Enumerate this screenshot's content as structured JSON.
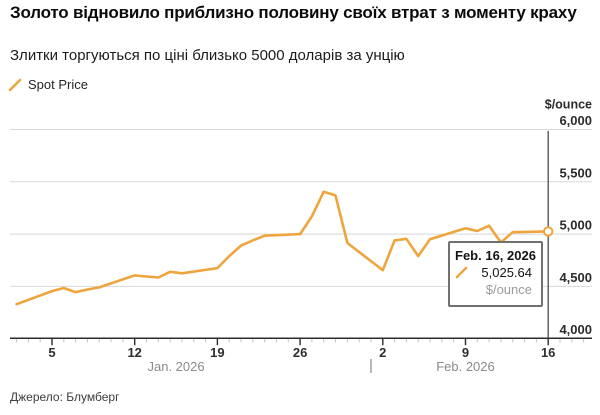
{
  "header": {
    "title": "Золото відновило приблизно половину своїх втрат з моменту краху",
    "subtitle": "Злитки торгуються по ціні близько 5000 доларів за унцію"
  },
  "legend": {
    "label": "Spot Price"
  },
  "tooltip": {
    "date": "Feb. 16, 2026",
    "value": "5,025.64",
    "unit": "$/ounce"
  },
  "footer": {
    "source": "Джерело: Блумберг"
  },
  "colors": {
    "line": "#efa53d",
    "grid": "#d8d8d8",
    "axis": "#2b2b2b",
    "crosshair": "#4d4d4d",
    "tick_minor": "#c4c4c4",
    "text_dark": "#2b2b2b",
    "text_muted": "#8a8a8a",
    "tooltip_border": "#70706e"
  },
  "chart_data": {
    "type": "line",
    "title": "Gold spot price",
    "legend_position": "top-left",
    "grid": "horizontal",
    "y_axis": {
      "unit": "$/ounce",
      "range": [
        4000,
        6000
      ],
      "ticks": [
        {
          "label": "6,000",
          "value": 6000
        },
        {
          "label": "5,500",
          "value": 5500
        },
        {
          "label": "5,000",
          "value": 5000
        },
        {
          "label": "4,500",
          "value": 4500
        },
        {
          "label": "4,000",
          "value": 4000
        }
      ]
    },
    "x_axis": {
      "start_date": "Jan 2, 2026",
      "end_date": "Feb 16, 2026",
      "ticks": [
        {
          "label": "5",
          "day": 3
        },
        {
          "label": "12",
          "day": 10
        },
        {
          "label": "19",
          "day": 17
        },
        {
          "label": "26",
          "day": 24
        },
        {
          "label": "2",
          "day": 31
        },
        {
          "label": "9",
          "day": 38
        },
        {
          "label": "16",
          "day": 45
        }
      ],
      "month_labels": [
        {
          "label": "Jan. 2026",
          "center_day": 13.5
        },
        {
          "label": "Feb. 2026",
          "center_day": 38
        }
      ],
      "month_separator_day": 30
    },
    "highlight": {
      "day": 45,
      "value": 5025.64,
      "date": "Feb. 16, 2026"
    },
    "series": [
      {
        "name": "Spot Price",
        "points": [
          {
            "date": "Jan 2",
            "day": 0,
            "value": 4330
          },
          {
            "date": "Jan 5",
            "day": 3,
            "value": 4455
          },
          {
            "date": "Jan 6",
            "day": 4,
            "value": 4485
          },
          {
            "date": "Jan 7",
            "day": 5,
            "value": 4445
          },
          {
            "date": "Jan 8",
            "day": 6,
            "value": 4470
          },
          {
            "date": "Jan 9",
            "day": 7,
            "value": 4490
          },
          {
            "date": "Jan 12",
            "day": 10,
            "value": 4605
          },
          {
            "date": "Jan 13",
            "day": 11,
            "value": 4595
          },
          {
            "date": "Jan 14",
            "day": 12,
            "value": 4585
          },
          {
            "date": "Jan 15",
            "day": 13,
            "value": 4640
          },
          {
            "date": "Jan 16",
            "day": 14,
            "value": 4625
          },
          {
            "date": "Jan 19",
            "day": 17,
            "value": 4675
          },
          {
            "date": "Jan 20",
            "day": 18,
            "value": 4790
          },
          {
            "date": "Jan 21",
            "day": 19,
            "value": 4890
          },
          {
            "date": "Jan 22",
            "day": 20,
            "value": 4940
          },
          {
            "date": "Jan 23",
            "day": 21,
            "value": 4985
          },
          {
            "date": "Jan 26",
            "day": 24,
            "value": 5000
          },
          {
            "date": "Jan 27",
            "day": 25,
            "value": 5170
          },
          {
            "date": "Jan 28",
            "day": 26,
            "value": 5405
          },
          {
            "date": "Jan 29",
            "day": 27,
            "value": 5370
          },
          {
            "date": "Jan 30",
            "day": 28,
            "value": 4915
          },
          {
            "date": "Feb 2",
            "day": 31,
            "value": 4655
          },
          {
            "date": "Feb 3",
            "day": 32,
            "value": 4940
          },
          {
            "date": "Feb 4",
            "day": 33,
            "value": 4955
          },
          {
            "date": "Feb 5",
            "day": 34,
            "value": 4790
          },
          {
            "date": "Feb 6",
            "day": 35,
            "value": 4950
          },
          {
            "date": "Feb 9",
            "day": 38,
            "value": 5055
          },
          {
            "date": "Feb 10",
            "day": 39,
            "value": 5030
          },
          {
            "date": "Feb 11",
            "day": 40,
            "value": 5080
          },
          {
            "date": "Feb 12",
            "day": 41,
            "value": 4920
          },
          {
            "date": "Feb 13",
            "day": 42,
            "value": 5018
          },
          {
            "date": "Feb 16",
            "day": 45,
            "value": 5025.64
          }
        ]
      }
    ]
  }
}
